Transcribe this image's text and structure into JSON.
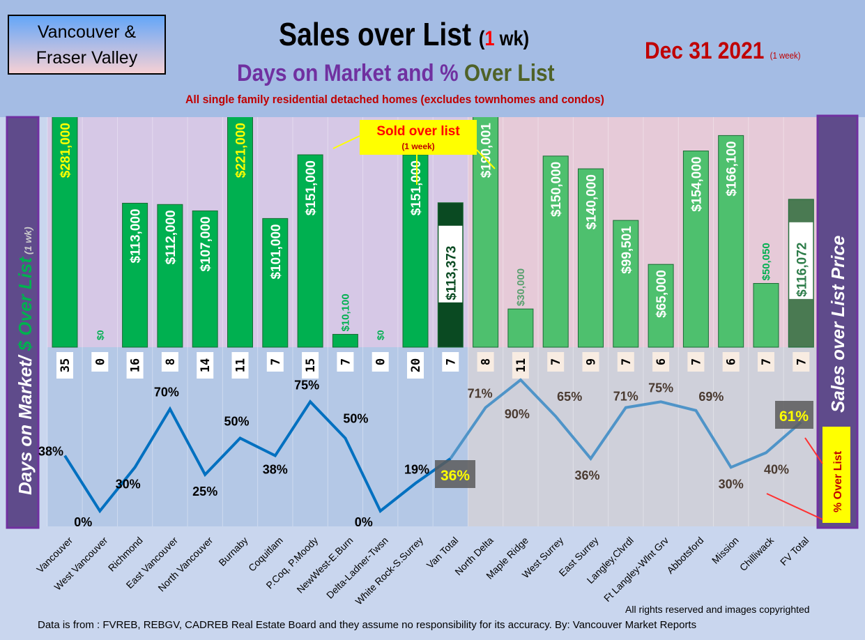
{
  "header": {
    "logo_line1": "Vancouver &",
    "logo_line2": "Fraser Valley",
    "title": "Sales over List",
    "title_paren_open": "(",
    "title_num": "1",
    "title_rest": " wk)",
    "subtitle_a": "Days on Market and % ",
    "subtitle_b": "Over List",
    "description": "All single family residential detached homes (excludes townhomes and condos)",
    "date": "Dec 31  2021",
    "date_note": "(1 week)"
  },
  "footer": {
    "copyright": "All rights reserved and  images copyrighted",
    "source": "Data is from : FVREB, REBGV, CADREB Real Estate Board and they assume no responsibility for its accuracy. By: Vancouver Market Reports"
  },
  "chart_data": {
    "type": "bar+line",
    "categories": [
      "Vancouver",
      "West Vancouver",
      "Richmond",
      "East Vancouver",
      "North Vancouver",
      "Burnaby",
      "Coquitlam",
      "P.Coq, P.Moody",
      "NewWest-E.Burn",
      "Delta-Ladner-Twsn",
      "White Rock-S.Surrey",
      "Van Total",
      "North Delta",
      "Maple Ridge",
      "West Surrey",
      "East Surrey",
      "Langley,Clvrdl",
      "Ft Langley-Wlnt Grv",
      "Abbotsford",
      "Mission",
      "Chilliwack",
      "FV Total"
    ],
    "series": [
      {
        "name": "$ Over List",
        "type": "bar",
        "values": [
          281000,
          0,
          113000,
          112000,
          107000,
          221000,
          101000,
          151000,
          10100,
          0,
          151000,
          113373,
          190001,
          30000,
          150000,
          140000,
          99501,
          65000,
          154000,
          166100,
          50050,
          116072
        ],
        "labels": [
          "$281,000",
          "$0",
          "$113,000",
          "$112,000",
          "$107,000",
          "$221,000",
          "$101,000",
          "$151,000",
          "$10,100",
          "$0",
          "$151,000",
          "$113,373",
          "$190,001",
          "$30,000",
          "$150,000",
          "$140,000",
          "$99,501",
          "$65,000",
          "$154,000",
          "$166,100",
          "$50,050",
          "$116,072"
        ]
      },
      {
        "name": "Days on Market",
        "type": "table",
        "values": [
          35,
          0,
          16,
          8,
          14,
          11,
          7,
          15,
          7,
          0,
          20,
          7,
          8,
          11,
          7,
          9,
          7,
          6,
          7,
          6,
          7,
          7
        ]
      },
      {
        "name": "% Over List",
        "type": "line",
        "values": [
          38,
          0,
          30,
          70,
          25,
          50,
          38,
          75,
          50,
          0,
          19,
          36,
          71,
          90,
          65,
          36,
          71,
          75,
          69,
          30,
          40,
          61
        ],
        "labels": [
          "38%",
          "0%",
          "30%",
          "70%",
          "25%",
          "50%",
          "38%",
          "75%",
          "50%",
          "0%",
          "19%",
          "36%",
          "71%",
          "90%",
          "65%",
          "36%",
          "71%",
          "75%",
          "69%",
          "30%",
          "40%",
          "61%"
        ]
      }
    ],
    "left_axis_label_a": "Days on Market/ ",
    "left_axis_label_b": "$ Over List",
    "left_axis_label_c": " (1 wk)",
    "right_axis_label": "Sales over List Price",
    "annotations": {
      "sold_over": "Sold over list",
      "sold_over_sub": "(1 week)",
      "pct_over": "% Over List"
    },
    "ylim_bar": [
      0,
      180000
    ],
    "ylim_line": [
      0,
      100
    ]
  }
}
